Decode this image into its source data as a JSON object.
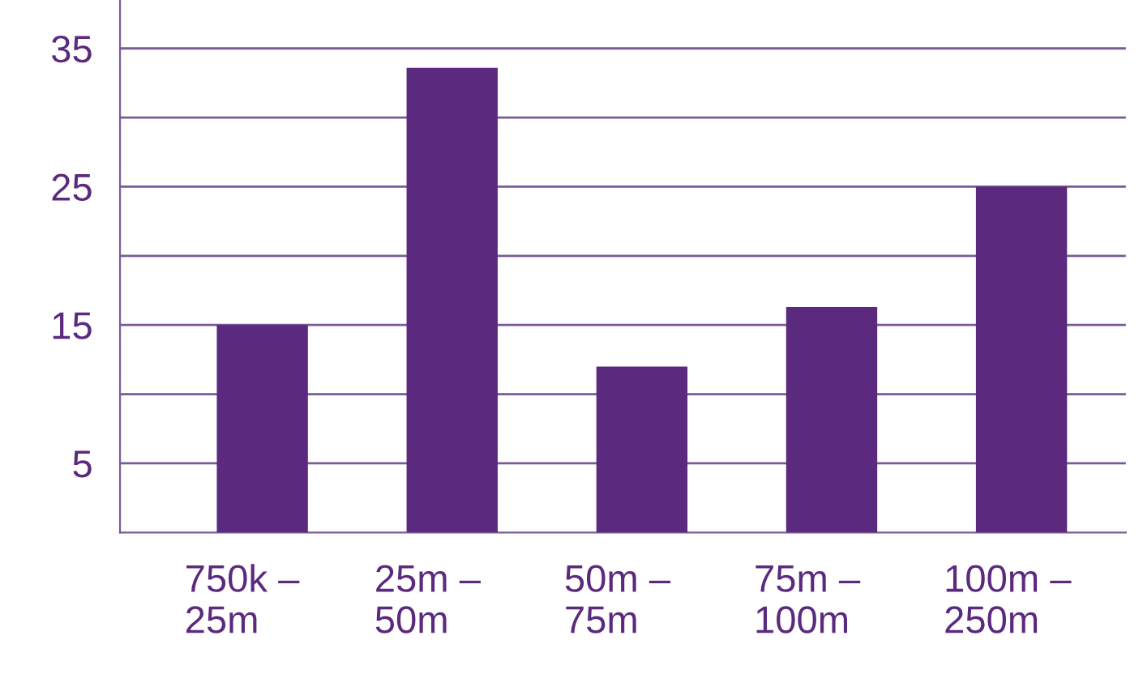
{
  "chart_data": {
    "type": "bar",
    "categories": [
      "750k –\n25m",
      "25m –\n50m",
      "50m –\n75m",
      "75m –\n100m",
      "100m –\n250m"
    ],
    "values": [
      15,
      33.6,
      12,
      16.3,
      25
    ],
    "color": "#5b2a7e",
    "ylim": [
      0,
      38.5
    ],
    "yticks": [
      5,
      {
        "value": 10,
        "label": null
      },
      15,
      {
        "value": 20,
        "label": null
      },
      25,
      {
        "value": 30,
        "label": null
      },
      35
    ],
    "grid": "y"
  }
}
